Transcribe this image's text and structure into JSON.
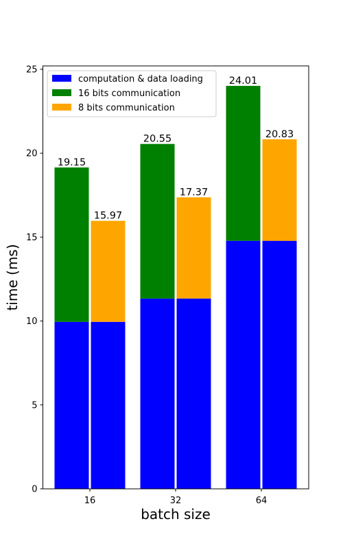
{
  "chart_data": {
    "type": "bar",
    "title": "",
    "xlabel": "batch size",
    "ylabel": "time (ms)",
    "categories": [
      "16",
      "32",
      "64"
    ],
    "ylim": [
      0,
      25.2
    ],
    "yticks": [
      0,
      5,
      10,
      15,
      20,
      25
    ],
    "grid": false,
    "legend_position": "top-left",
    "series": [
      {
        "name": "computation & data loading",
        "color": "#0000ff",
        "values": [
          9.95,
          11.34,
          14.78
        ]
      },
      {
        "name": "16 bits communication",
        "color": "#008000",
        "values": [
          9.2,
          9.21,
          9.23
        ]
      },
      {
        "name": "8 bits communication",
        "color": "#ffa500",
        "values": [
          6.02,
          6.03,
          6.05
        ]
      }
    ],
    "bar_groups": [
      {
        "category": "16",
        "fp16_total": "19.15",
        "int8_total": "15.97"
      },
      {
        "category": "32",
        "fp16_total": "20.55",
        "int8_total": "17.37"
      },
      {
        "category": "64",
        "fp16_total": "24.01",
        "int8_total": "20.83"
      }
    ]
  }
}
